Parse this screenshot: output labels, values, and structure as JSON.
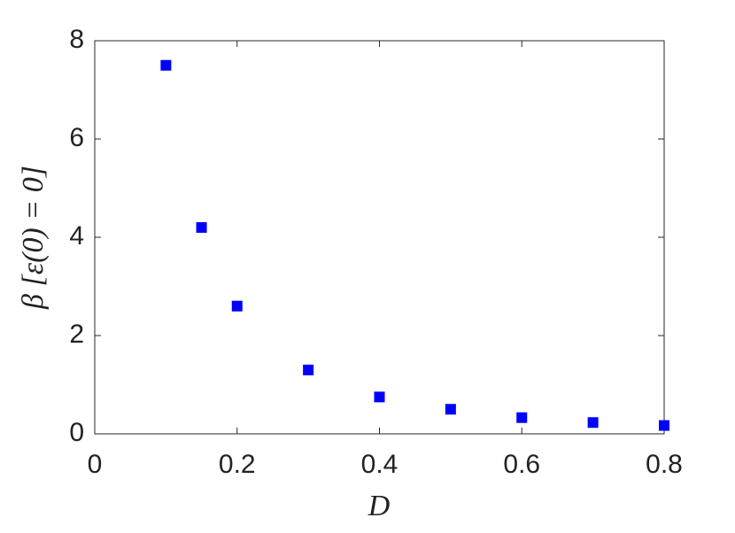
{
  "chart_data": {
    "type": "scatter",
    "x_label": "D",
    "y_label": "β [ε(0) = 0]",
    "series": [
      {
        "color": "#0000ff",
        "x": [
          0.1,
          0.15,
          0.2,
          0.3,
          0.4,
          0.5,
          0.6,
          0.7,
          0.8
        ],
        "values": [
          7.5,
          4.2,
          2.6,
          1.3,
          0.75,
          0.5,
          0.33,
          0.23,
          0.17
        ]
      }
    ],
    "xlim": [
      0,
      0.8
    ],
    "xticks": [
      0,
      0.2,
      0.4,
      0.6,
      0.8
    ],
    "ylim": [
      0,
      8
    ],
    "yticks": [
      0,
      2,
      4,
      6,
      8
    ],
    "grid": false
  }
}
